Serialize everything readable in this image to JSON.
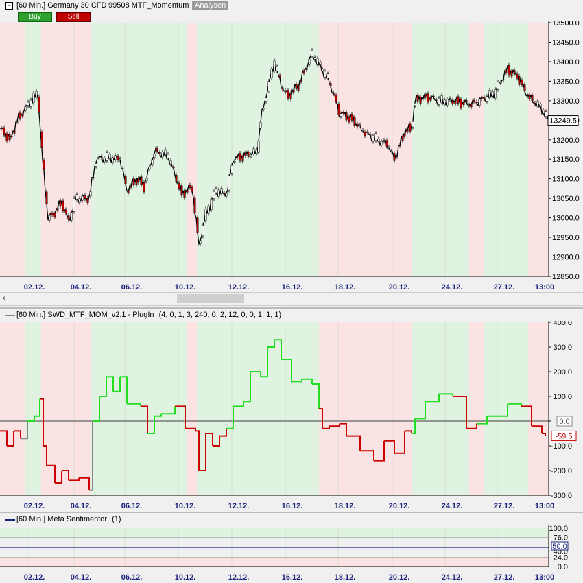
{
  "main_header": {
    "collapse_icon": "minus-box-icon",
    "title": "[60 Min.] Germany 30 CFD",
    "strategy": "99508 MTF_Momentum",
    "analysis_button": "Analysen",
    "buy_label": "Buy",
    "sell_label": "Sell"
  },
  "colors": {
    "buy": "#2ea02e",
    "sell": "#c00000",
    "bull_zone": "#e0f2e0",
    "bear_zone": "#fbe3e3",
    "indicator_pos": "#22dd22",
    "indicator_neg": "#cc0000",
    "indicator_neutral": "#888888",
    "date_text": "#1a237e"
  },
  "dates": [
    "02.12.",
    "04.12.",
    "06.12.",
    "10.12.",
    "12.12.",
    "16.12.",
    "18.12.",
    "20.12.",
    "24.12.",
    "27.12.",
    "13:00"
  ],
  "zones": [
    {
      "from": 0,
      "to": 36,
      "state": "bear"
    },
    {
      "from": 36,
      "to": 60,
      "state": "bull"
    },
    {
      "from": 60,
      "to": 132,
      "state": "bear"
    },
    {
      "from": 132,
      "to": 272,
      "state": "bull"
    },
    {
      "from": 272,
      "to": 287,
      "state": "bear"
    },
    {
      "from": 287,
      "to": 333,
      "state": "bull"
    },
    {
      "from": 333,
      "to": 465,
      "state": "bull"
    },
    {
      "from": 465,
      "to": 600,
      "state": "bear"
    },
    {
      "from": 600,
      "to": 684,
      "state": "bull"
    },
    {
      "from": 684,
      "to": 706,
      "state": "bear"
    },
    {
      "from": 706,
      "to": 770,
      "state": "bull"
    },
    {
      "from": 770,
      "to": 800,
      "state": "bear"
    }
  ],
  "price_chart": {
    "y_ticks": [
      "13500.0",
      "13450.0",
      "13400.0",
      "13350.0",
      "13300.0",
      "13250.0",
      "13200.0",
      "13150.0",
      "13100.0",
      "13050.0",
      "13000.0",
      "12950.0",
      "12900.0",
      "12850.0"
    ],
    "last_price": "13249.5",
    "ylim": [
      12850,
      13500
    ],
    "path": [
      [
        0,
        13230
      ],
      [
        15,
        13200
      ],
      [
        25,
        13250
      ],
      [
        45,
        13300
      ],
      [
        55,
        13320
      ],
      [
        62,
        13150
      ],
      [
        70,
        13000
      ],
      [
        78,
        13010
      ],
      [
        90,
        13040
      ],
      [
        100,
        12990
      ],
      [
        110,
        13050
      ],
      [
        130,
        13050
      ],
      [
        140,
        13150
      ],
      [
        160,
        13155
      ],
      [
        175,
        13150
      ],
      [
        185,
        13070
      ],
      [
        200,
        13100
      ],
      [
        210,
        13080
      ],
      [
        225,
        13170
      ],
      [
        245,
        13160
      ],
      [
        265,
        13060
      ],
      [
        280,
        13080
      ],
      [
        290,
        12930
      ],
      [
        300,
        13010
      ],
      [
        315,
        13070
      ],
      [
        330,
        13060
      ],
      [
        340,
        13150
      ],
      [
        360,
        13160
      ],
      [
        375,
        13170
      ],
      [
        380,
        13250
      ],
      [
        390,
        13330
      ],
      [
        400,
        13400
      ],
      [
        410,
        13340
      ],
      [
        420,
        13310
      ],
      [
        435,
        13340
      ],
      [
        445,
        13380
      ],
      [
        455,
        13420
      ],
      [
        470,
        13380
      ],
      [
        480,
        13350
      ],
      [
        495,
        13270
      ],
      [
        515,
        13250
      ],
      [
        530,
        13220
      ],
      [
        550,
        13200
      ],
      [
        565,
        13190
      ],
      [
        575,
        13150
      ],
      [
        590,
        13220
      ],
      [
        600,
        13230
      ],
      [
        605,
        13300
      ],
      [
        620,
        13310
      ],
      [
        640,
        13300
      ],
      [
        660,
        13300
      ],
      [
        685,
        13290
      ],
      [
        700,
        13300
      ],
      [
        720,
        13320
      ],
      [
        740,
        13380
      ],
      [
        755,
        13360
      ],
      [
        770,
        13310
      ],
      [
        790,
        13280
      ],
      [
        800,
        13249.5
      ]
    ]
  },
  "indicator_header": {
    "title": "[60 Min.] SWD_MTF_MOM_v2.1 - PlugIn",
    "params": "(4, 0, 1, 3, 240, 0, 2, 12, 0, 0, 1, 1, 1)"
  },
  "indicator_chart": {
    "y_ticks": [
      "400.0",
      "300.0",
      "200.0",
      "100.0",
      "0.0",
      "-100.0",
      "-200.0",
      "-300.0"
    ],
    "ylim": [
      -300,
      400
    ],
    "zero_label": "0.0",
    "last_value": "-59.5",
    "path": [
      [
        0,
        -40
      ],
      [
        10,
        -100
      ],
      [
        20,
        -40
      ],
      [
        30,
        -70
      ],
      [
        40,
        0
      ],
      [
        50,
        20
      ],
      [
        58,
        90
      ],
      [
        63,
        -100
      ],
      [
        68,
        -180
      ],
      [
        80,
        -250
      ],
      [
        90,
        -200
      ],
      [
        100,
        -240
      ],
      [
        115,
        -230
      ],
      [
        130,
        -280
      ],
      [
        135,
        0
      ],
      [
        145,
        100
      ],
      [
        155,
        180
      ],
      [
        165,
        120
      ],
      [
        175,
        180
      ],
      [
        185,
        70
      ],
      [
        205,
        60
      ],
      [
        215,
        -50
      ],
      [
        225,
        20
      ],
      [
        235,
        30
      ],
      [
        255,
        60
      ],
      [
        270,
        -30
      ],
      [
        285,
        -40
      ],
      [
        290,
        -200
      ],
      [
        300,
        -50
      ],
      [
        310,
        -100
      ],
      [
        320,
        -60
      ],
      [
        330,
        -30
      ],
      [
        340,
        60
      ],
      [
        355,
        80
      ],
      [
        365,
        200
      ],
      [
        380,
        180
      ],
      [
        390,
        300
      ],
      [
        400,
        330
      ],
      [
        410,
        250
      ],
      [
        425,
        160
      ],
      [
        440,
        170
      ],
      [
        455,
        150
      ],
      [
        465,
        50
      ],
      [
        470,
        -30
      ],
      [
        480,
        -20
      ],
      [
        495,
        -10
      ],
      [
        505,
        -60
      ],
      [
        525,
        -120
      ],
      [
        545,
        -160
      ],
      [
        560,
        -80
      ],
      [
        575,
        -130
      ],
      [
        590,
        -40
      ],
      [
        600,
        -50
      ],
      [
        605,
        10
      ],
      [
        620,
        80
      ],
      [
        640,
        110
      ],
      [
        660,
        100
      ],
      [
        680,
        -30
      ],
      [
        695,
        -10
      ],
      [
        710,
        20
      ],
      [
        740,
        70
      ],
      [
        760,
        60
      ],
      [
        775,
        -20
      ],
      [
        790,
        -50
      ],
      [
        795,
        -59.5
      ]
    ]
  },
  "sentiment_header": {
    "title": "[60 Min.] Meta Sentimentor",
    "params": "(1)"
  },
  "sentiment_chart": {
    "y_ticks": [
      "100.0",
      "76.0",
      "50.0",
      "40.0",
      "24.0",
      "0.0"
    ],
    "current": "50.0"
  }
}
